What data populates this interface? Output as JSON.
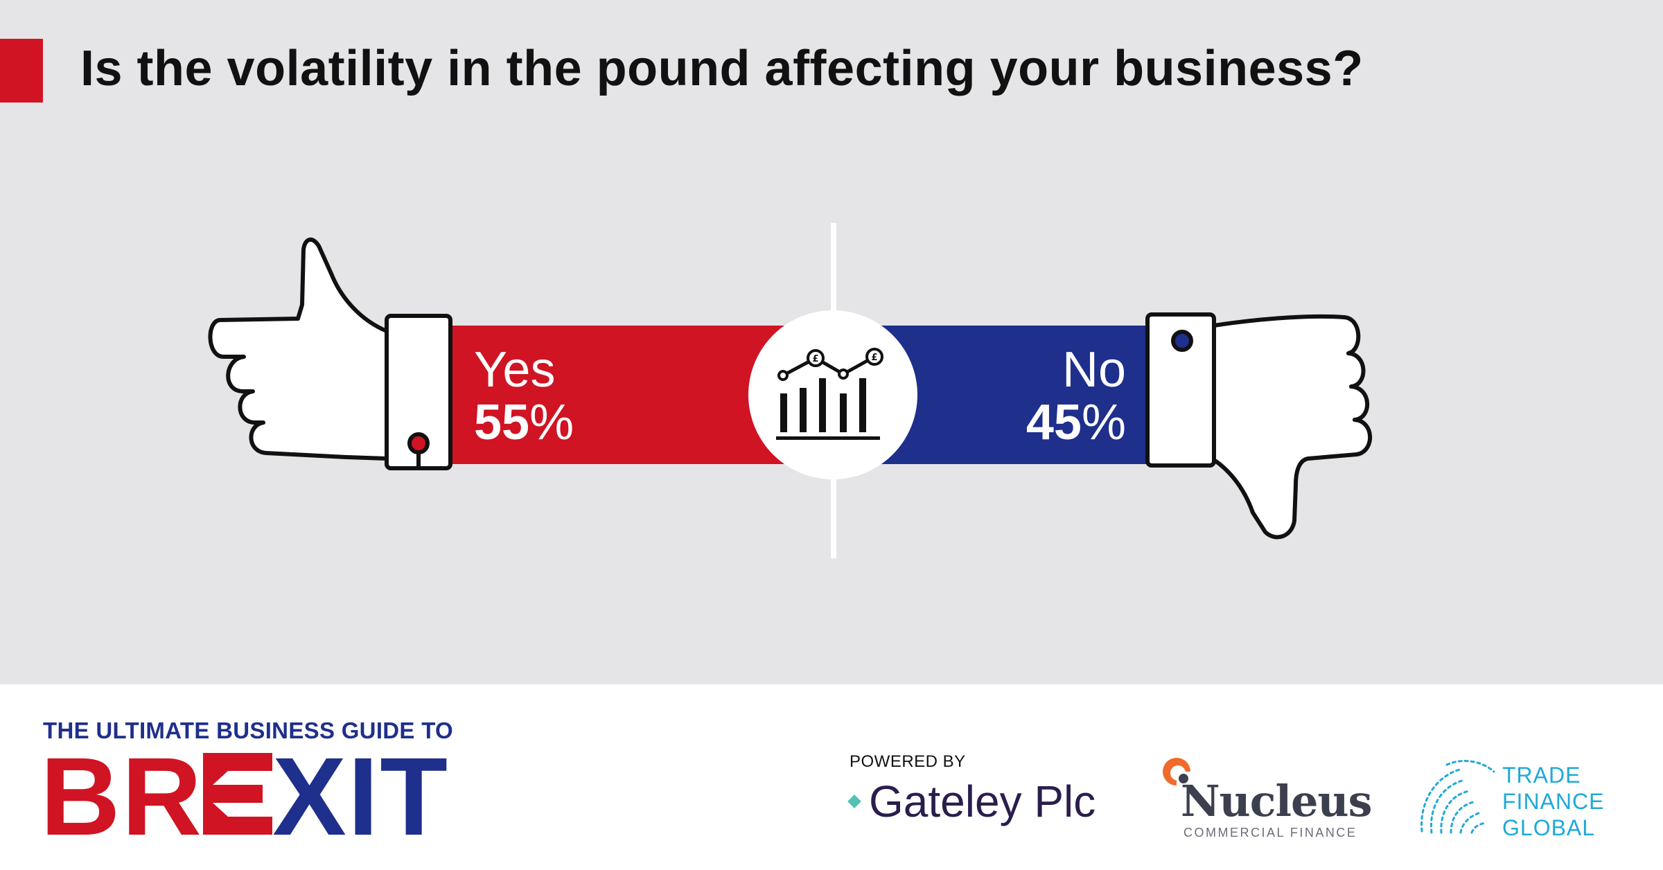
{
  "header": {
    "question": "Is the volatility in the pound affecting your business?"
  },
  "chart_data": {
    "type": "bar",
    "categories": [
      "Yes",
      "No"
    ],
    "values": [
      55,
      45
    ],
    "value_labels": [
      "55",
      "45"
    ],
    "unit": "%",
    "colors": [
      "#d01423",
      "#1e2f8c"
    ],
    "center_icon": "pound-chart-icon",
    "left_icon": "thumbs-up-icon",
    "right_icon": "thumbs-down-icon"
  },
  "footer": {
    "brand_top": "THE ULTIMATE BUSINESS GUIDE TO",
    "brand_main_1": "BR",
    "brand_main_2": "XIT",
    "powered_by": "POWERED BY",
    "gateley": "Gateley Plc",
    "nucleus_name": "Nucleus",
    "nucleus_sub": "COMMERCIAL FINANCE",
    "tfg_line1": "TRADE",
    "tfg_line2": "FINANCE",
    "tfg_line3": "GLOBAL"
  },
  "colors": {
    "accent_red": "#d01423",
    "accent_blue": "#1e2f8c",
    "panel_gray": "#e5e5e7",
    "tfg_blue": "#1fa9d8"
  }
}
